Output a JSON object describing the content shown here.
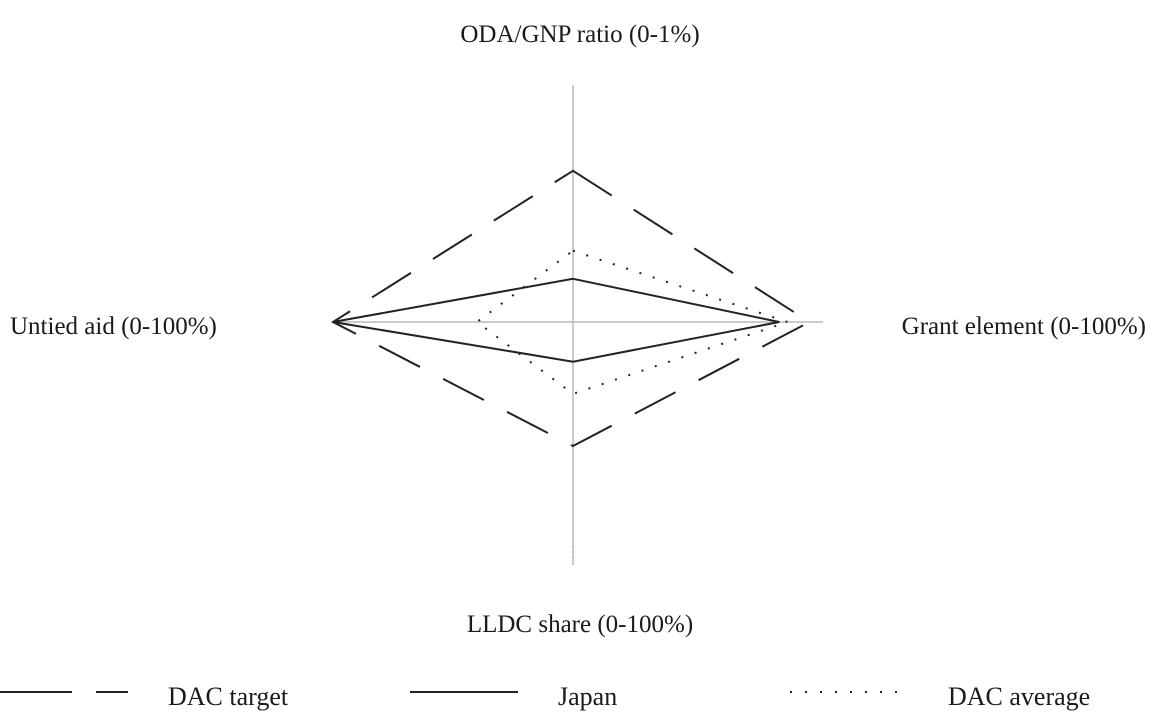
{
  "chart_data": {
    "type": "radar",
    "axes": [
      {
        "key": "oda_gnp",
        "label": "ODA/GNP ratio (0-1%)",
        "min": 0,
        "max": 1,
        "unit": "%"
      },
      {
        "key": "grant",
        "label": "Grant element (0-100%)",
        "min": 0,
        "max": 100,
        "unit": "%"
      },
      {
        "key": "lldc",
        "label": "LLDC share (0-100%)",
        "min": 0,
        "max": 100,
        "unit": "%"
      },
      {
        "key": "untied",
        "label": "Untied aid (0-100%)",
        "min": 0,
        "max": 100,
        "unit": "%"
      }
    ],
    "series": [
      {
        "name": "DAC target",
        "style": "dashed",
        "values": [
          0.7,
          86,
          50,
          100
        ]
      },
      {
        "name": "Japan",
        "style": "solid",
        "values": [
          0.2,
          75,
          16,
          100
        ]
      },
      {
        "name": "DAC average",
        "style": "dotted",
        "values": [
          0.33,
          78,
          29,
          40
        ]
      }
    ],
    "legend_position": "bottom",
    "grid": false,
    "colors": {
      "line": "#222222",
      "axis": "#b5b8cc"
    }
  }
}
